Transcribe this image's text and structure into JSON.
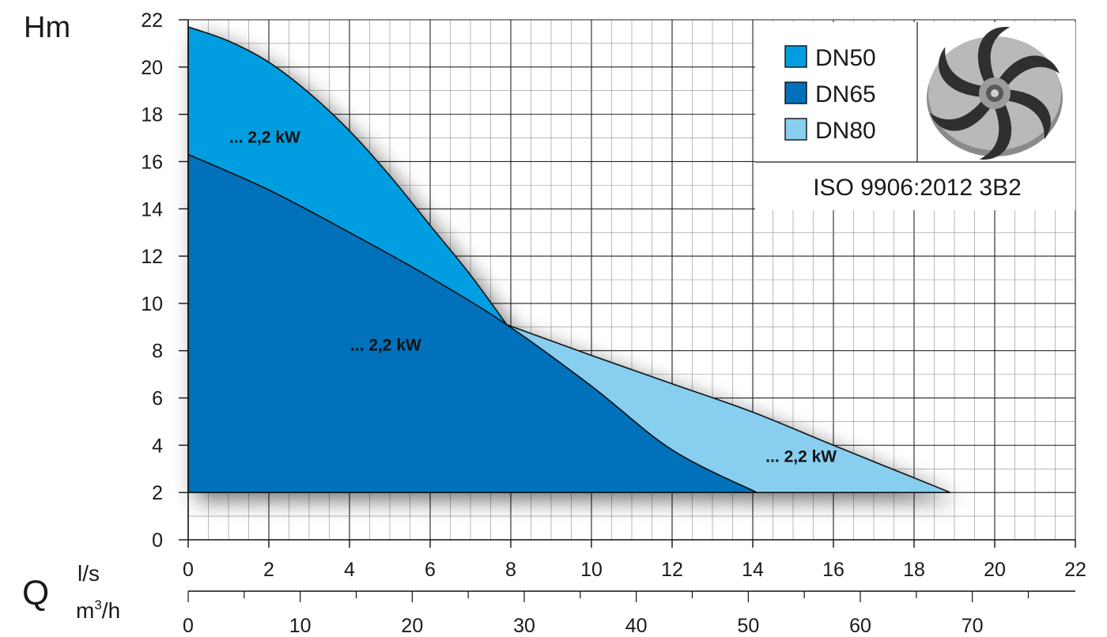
{
  "chart_data": {
    "type": "area",
    "ylabel": "Hm",
    "xlabel": "Q",
    "x_unit_primary": "l/s",
    "x_unit_secondary": "m³/h",
    "ylim": [
      0,
      22
    ],
    "xlim": [
      0,
      22
    ],
    "x2lim": [
      0,
      79.2
    ],
    "y_ticks": [
      0,
      2,
      4,
      6,
      8,
      10,
      12,
      14,
      16,
      18,
      20,
      22
    ],
    "x_ticks": [
      0,
      2,
      4,
      6,
      8,
      10,
      12,
      14,
      16,
      18,
      20,
      22
    ],
    "x2_ticks": [
      0,
      10,
      20,
      30,
      40,
      50,
      60,
      70
    ],
    "grid": true,
    "series": [
      {
        "name": "DN50",
        "color": "#009ee0",
        "label": "... 2,2 kW",
        "x": [
          0,
          1,
          2,
          3,
          4,
          5,
          6,
          7,
          7.9
        ],
        "y": [
          21.7,
          21.1,
          20.2,
          18.9,
          17.3,
          15.4,
          13.3,
          11.2,
          9.1
        ]
      },
      {
        "name": "DN65",
        "color": "#0071ba",
        "label": "... 2,2 kW",
        "x": [
          0,
          2,
          4,
          6,
          7.9,
          10,
          12,
          14.1
        ],
        "y": [
          16.3,
          14.8,
          13.0,
          11.1,
          9.1,
          6.5,
          3.8,
          2.0
        ]
      },
      {
        "name": "DN80",
        "color": "#87ceef",
        "label": "... 2,2 kW",
        "x": [
          7.9,
          10,
          12,
          14,
          16,
          18.9
        ],
        "y": [
          9.1,
          7.8,
          6.6,
          5.4,
          4.0,
          2.0
        ]
      }
    ],
    "baseline_y": 2,
    "annotation": "ISO 9906:2012 3B2",
    "legend_position": "top-right",
    "icon": "impeller-icon"
  }
}
